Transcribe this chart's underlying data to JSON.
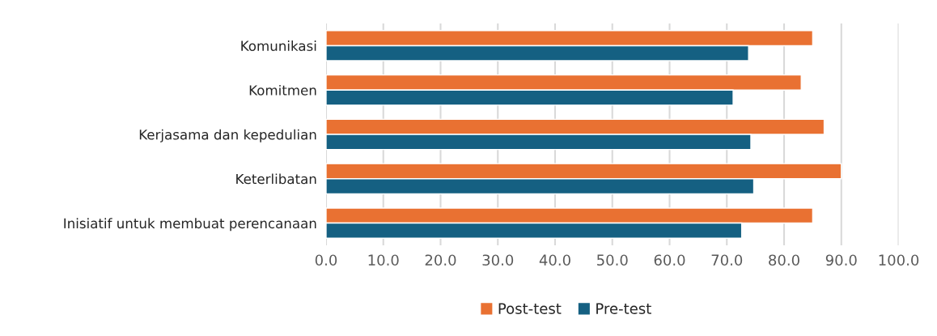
{
  "chart_data": {
    "type": "bar",
    "orientation": "horizontal",
    "categories": [
      "Komunikasi",
      "Komitmen",
      "Kerjasama dan kepedulian",
      "Keterlibatan",
      "Inisiatif untuk membuat perencanaan"
    ],
    "series": [
      {
        "name": "Post-test",
        "color": "#e97132",
        "values": [
          85,
          83,
          87,
          90,
          85
        ]
      },
      {
        "name": "Pre-test",
        "color": "#156082",
        "values": [
          73.8,
          71.1,
          74.2,
          74.7,
          72.6
        ]
      }
    ],
    "xlim": [
      0,
      100
    ],
    "xticks": [
      {
        "value": 0,
        "label": "0.0"
      },
      {
        "value": 10,
        "label": "10.0"
      },
      {
        "value": 20,
        "label": "20.0"
      },
      {
        "value": 30,
        "label": "30.0"
      },
      {
        "value": 40,
        "label": "40.0"
      },
      {
        "value": 50,
        "label": "50.0"
      },
      {
        "value": 60,
        "label": "60.0"
      },
      {
        "value": 70,
        "label": "70.0"
      },
      {
        "value": 80,
        "label": "80.0"
      },
      {
        "value": 90,
        "label": "90.0"
      },
      {
        "value": 100,
        "label": "100.0"
      }
    ],
    "grid": "x",
    "legend": "bottom"
  }
}
